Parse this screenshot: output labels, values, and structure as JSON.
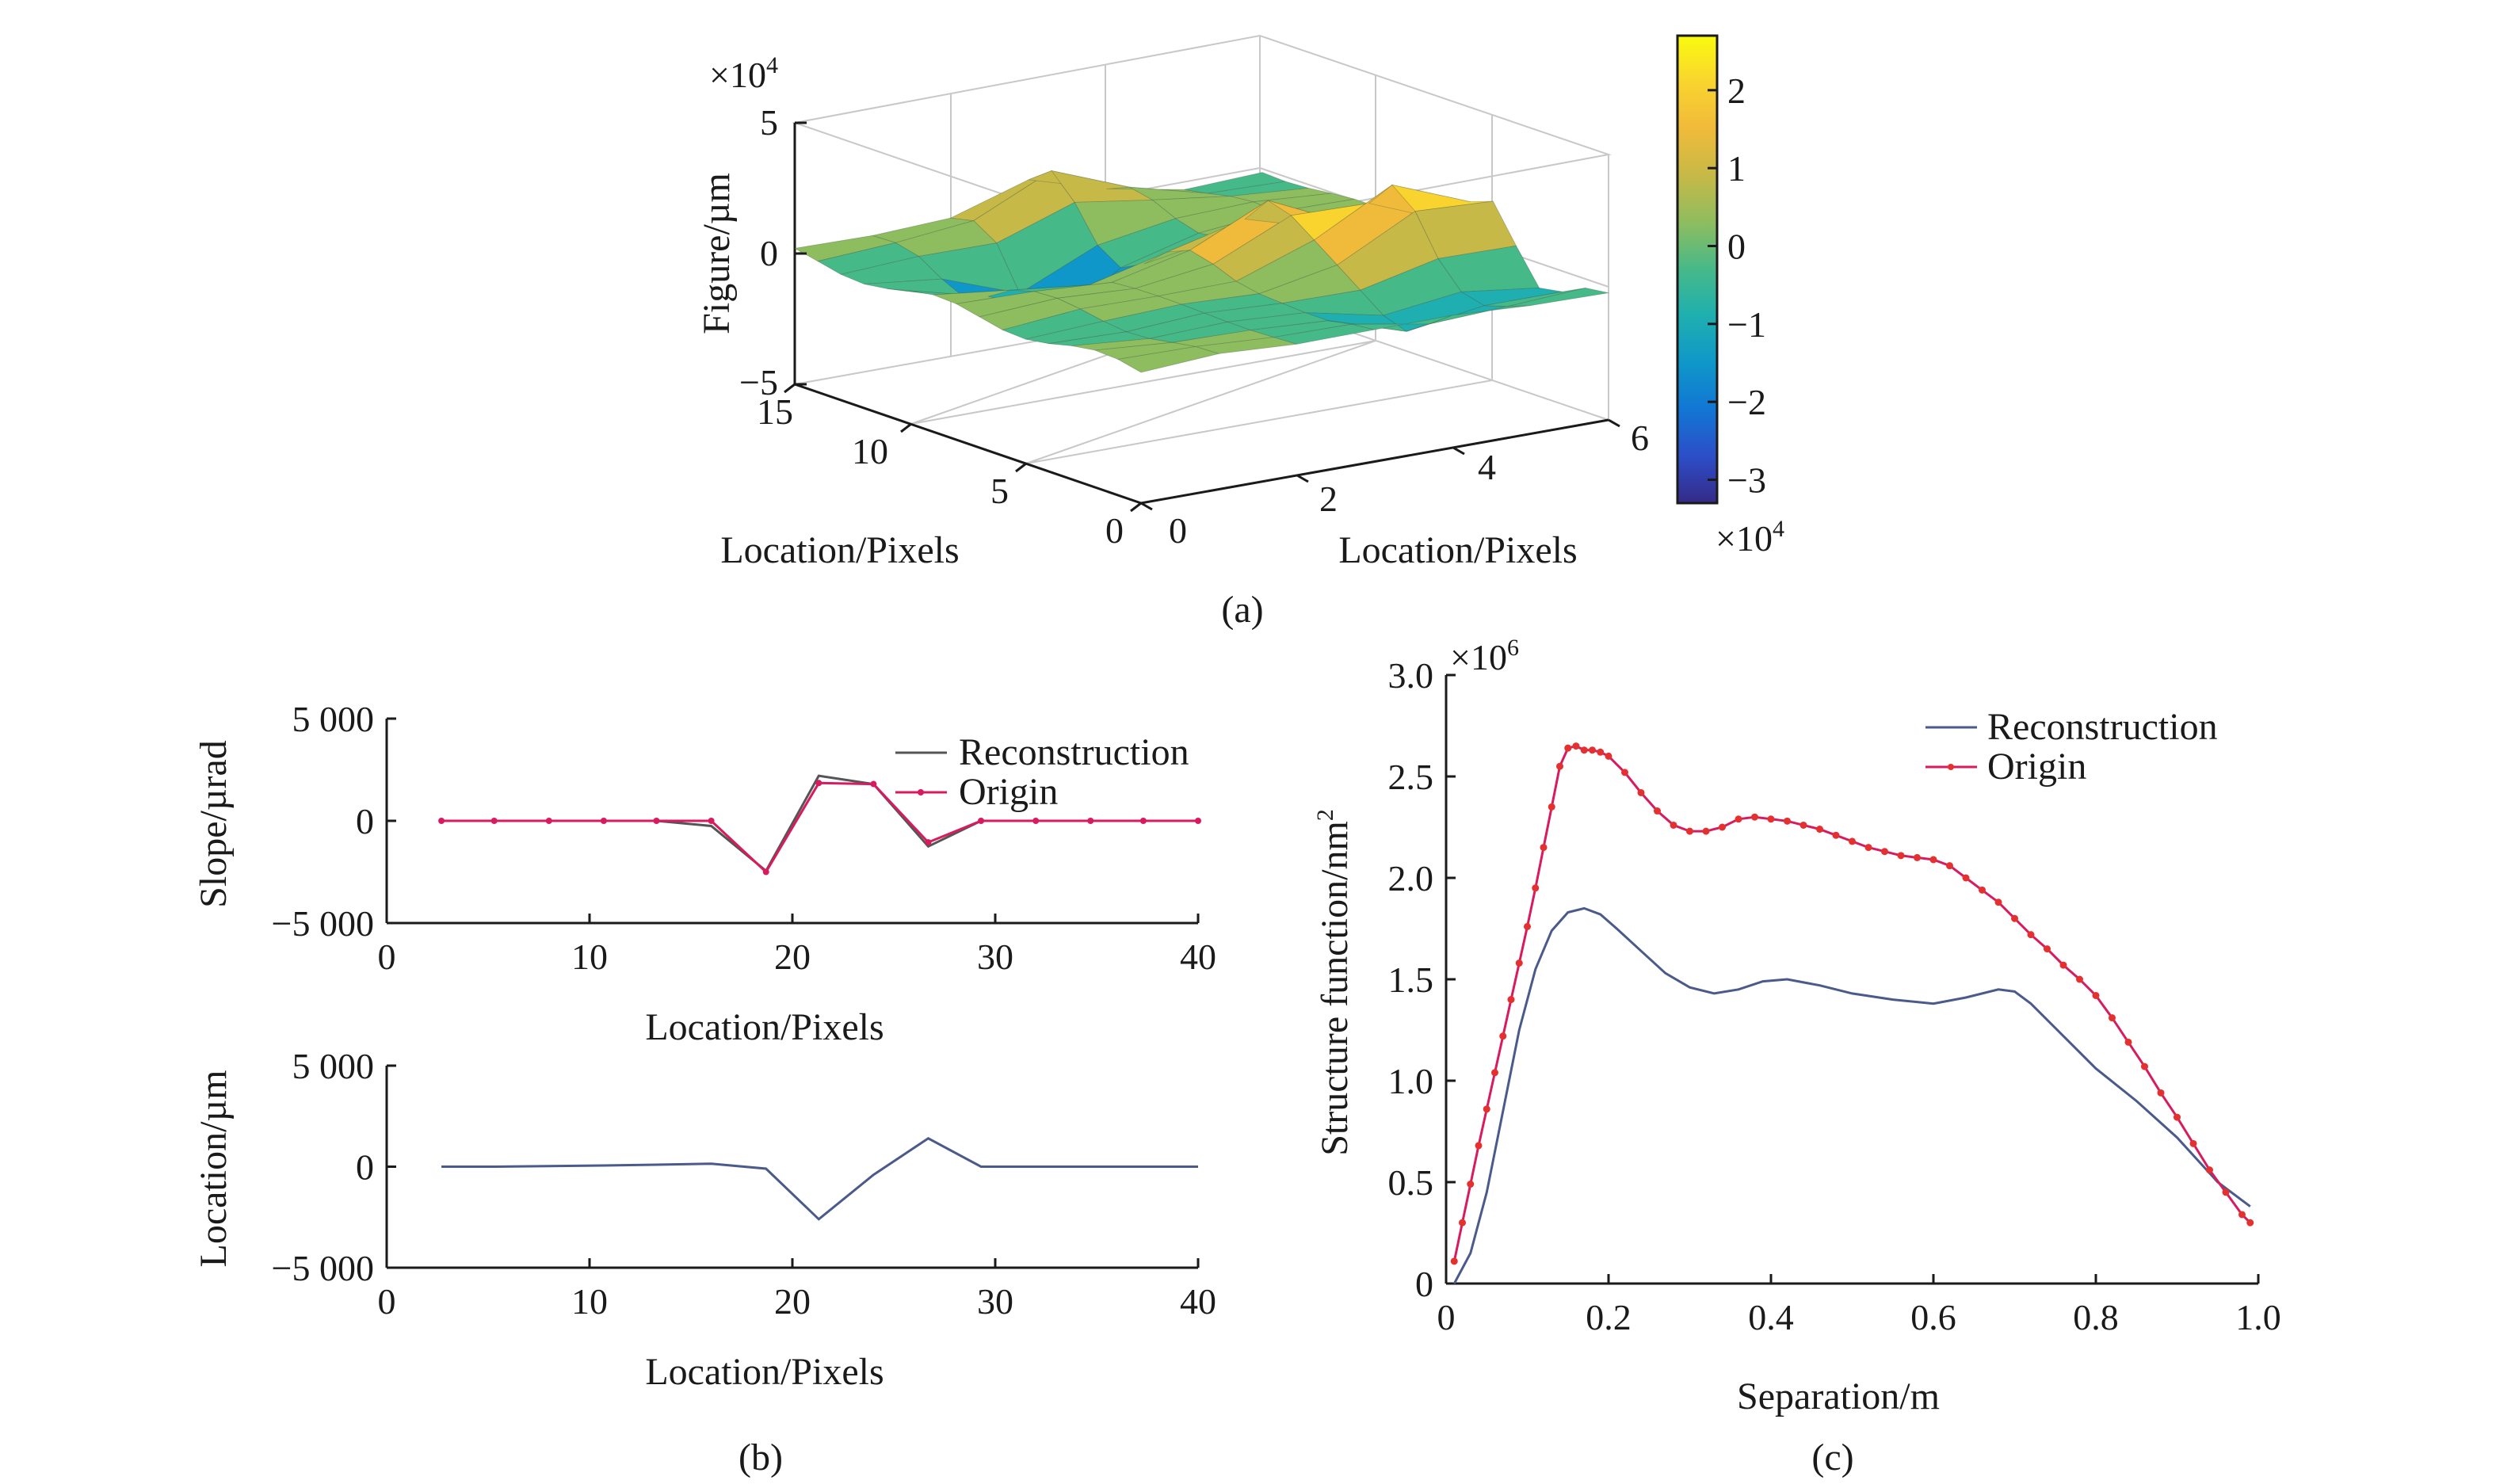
{
  "panels": {
    "a": {
      "label": "(a)",
      "type": "surface3d",
      "zlabel": "Figure/µm",
      "z_exponent": "×10",
      "z_exp_power": "4",
      "zticks": [
        "5",
        "0",
        "−5"
      ],
      "xlabel_left": "Location/Pixels",
      "xticks_left": [
        "15",
        "10",
        "5",
        "0"
      ],
      "xlabel_right": "Location/Pixels",
      "xticks_right": [
        "0",
        "2",
        "4",
        "6"
      ],
      "colorbar": {
        "ticks": [
          "2",
          "1",
          "0",
          "−1",
          "−2",
          "−3"
        ],
        "exponent": "×10",
        "exp_power": "4",
        "range": [
          -3.3,
          2.7
        ],
        "colors": [
          "#352a87",
          "#2c4ec8",
          "#1276d4",
          "#0f97c9",
          "#1fafb0",
          "#46b989",
          "#8ebd5f",
          "#c6b948",
          "#f0ba3a",
          "#f9d42f",
          "#f9fb0e"
        ]
      }
    },
    "b_top": {
      "ylabel": "Slope/µrad",
      "xlabel": "Location/Pixels",
      "yticks": [
        "5 000",
        "0",
        "−5 000"
      ],
      "xticks": [
        "0",
        "10",
        "20",
        "30",
        "40"
      ],
      "legend": [
        "Reconstruction",
        "Origin"
      ]
    },
    "b_bottom": {
      "ylabel": "Location/µm",
      "xlabel": "Location/Pixels",
      "yticks": [
        "5 000",
        "0",
        "−5 000"
      ],
      "xticks": [
        "0",
        "10",
        "20",
        "30",
        "40"
      ]
    },
    "b": {
      "label": "(b)"
    },
    "c": {
      "label": "(c)",
      "ylabel": "Structure function/nm",
      "ylabel_sup": "2",
      "xlabel": "Separation/m",
      "y_exponent": "×10",
      "y_exp_power": "6",
      "yticks": [
        "3.0",
        "2.5",
        "2.0",
        "1.5",
        "1.0",
        "0.5",
        "0"
      ],
      "xticks": [
        "0",
        "0.2",
        "0.4",
        "0.6",
        "0.8",
        "1.0"
      ],
      "legend": [
        "Reconstruction",
        "Origin"
      ]
    }
  },
  "chart_data": [
    {
      "type": "surface",
      "panel": "a",
      "x_range": [
        0,
        6
      ],
      "y_range": [
        0,
        15
      ],
      "z_range": [
        -5,
        5
      ],
      "z_scale": "x1e4",
      "grid_rows": 16,
      "grid_cols": 7,
      "peaks": [
        {
          "x": 3,
          "y": 14,
          "z": 1.8
        },
        {
          "x": 4,
          "y": 8,
          "z": 1.9
        },
        {
          "x": 2,
          "y": 11,
          "z": -2.9
        },
        {
          "x": 5,
          "y": 6,
          "z": 2.2
        },
        {
          "x": 6,
          "y": 5,
          "z": 1.6
        },
        {
          "x": 6,
          "y": 3,
          "z": -1.2
        },
        {
          "x": 4,
          "y": 2,
          "z": -1.0
        }
      ]
    },
    {
      "type": "line",
      "panel": "b_top",
      "x_range": [
        0,
        40
      ],
      "y_range": [
        -5000,
        5000
      ],
      "series": [
        {
          "name": "Reconstruction",
          "color": "#555555",
          "x": [
            2.7,
            5.3,
            8,
            10.7,
            13.3,
            16,
            18.7,
            21.3,
            24,
            26.7,
            29.3,
            32,
            34.7,
            37.3,
            40
          ],
          "y": [
            0,
            0,
            0,
            0,
            0,
            -250,
            -2450,
            2200,
            1800,
            -1250,
            0,
            0,
            0,
            0,
            0
          ]
        },
        {
          "name": "Origin",
          "color": "#d81b5f",
          "x": [
            2.7,
            5.3,
            8,
            10.7,
            13.3,
            16,
            18.7,
            21.3,
            24,
            26.7,
            29.3,
            32,
            34.7,
            37.3,
            40
          ],
          "y": [
            0,
            0,
            0,
            0,
            0,
            0,
            -2500,
            1850,
            1800,
            -1050,
            0,
            0,
            0,
            0,
            0
          ]
        }
      ]
    },
    {
      "type": "line",
      "panel": "b_bottom",
      "x_range": [
        0,
        40
      ],
      "y_range": [
        -5000,
        5000
      ],
      "series": [
        {
          "name": "",
          "color": "#4a5a8a",
          "x": [
            2.7,
            5.3,
            8,
            10.7,
            13.3,
            16,
            18.7,
            21.3,
            24,
            26.7,
            29.3,
            32,
            34.7,
            37.3,
            40
          ],
          "y": [
            0,
            0,
            30,
            60,
            100,
            150,
            -100,
            -2600,
            -400,
            1400,
            0,
            0,
            0,
            0,
            0
          ]
        }
      ]
    },
    {
      "type": "line",
      "panel": "c",
      "x_range": [
        0,
        1.0
      ],
      "y_range": [
        0,
        3.0
      ],
      "y_scale": "x1e6",
      "series": [
        {
          "name": "Reconstruction",
          "color": "#4a5a8a",
          "x": [
            0.01,
            0.03,
            0.05,
            0.07,
            0.09,
            0.11,
            0.13,
            0.15,
            0.17,
            0.19,
            0.21,
            0.24,
            0.27,
            0.3,
            0.33,
            0.36,
            0.39,
            0.42,
            0.46,
            0.5,
            0.55,
            0.6,
            0.64,
            0.68,
            0.7,
            0.72,
            0.75,
            0.8,
            0.85,
            0.9,
            0.95,
            0.99
          ],
          "y": [
            0.0,
            0.15,
            0.45,
            0.85,
            1.25,
            1.55,
            1.74,
            1.83,
            1.85,
            1.82,
            1.75,
            1.64,
            1.53,
            1.46,
            1.43,
            1.45,
            1.49,
            1.5,
            1.47,
            1.43,
            1.4,
            1.38,
            1.41,
            1.45,
            1.44,
            1.38,
            1.26,
            1.06,
            0.9,
            0.72,
            0.5,
            0.38
          ]
        },
        {
          "name": "Origin",
          "color": "#d81b5f",
          "x": [
            0.01,
            0.02,
            0.03,
            0.04,
            0.05,
            0.06,
            0.07,
            0.08,
            0.09,
            0.1,
            0.11,
            0.12,
            0.13,
            0.14,
            0.15,
            0.16,
            0.17,
            0.18,
            0.19,
            0.2,
            0.22,
            0.24,
            0.26,
            0.28,
            0.3,
            0.32,
            0.34,
            0.36,
            0.38,
            0.4,
            0.42,
            0.44,
            0.46,
            0.48,
            0.5,
            0.52,
            0.54,
            0.56,
            0.58,
            0.6,
            0.62,
            0.64,
            0.66,
            0.68,
            0.7,
            0.72,
            0.74,
            0.76,
            0.78,
            0.8,
            0.82,
            0.84,
            0.86,
            0.88,
            0.9,
            0.92,
            0.94,
            0.96,
            0.98,
            0.99
          ],
          "y": [
            0.11,
            0.3,
            0.49,
            0.68,
            0.86,
            1.04,
            1.22,
            1.4,
            1.58,
            1.76,
            1.95,
            2.15,
            2.35,
            2.55,
            2.64,
            2.65,
            2.63,
            2.63,
            2.62,
            2.6,
            2.52,
            2.42,
            2.33,
            2.26,
            2.23,
            2.23,
            2.25,
            2.29,
            2.3,
            2.29,
            2.28,
            2.26,
            2.24,
            2.21,
            2.18,
            2.15,
            2.13,
            2.11,
            2.1,
            2.09,
            2.06,
            2.0,
            1.94,
            1.88,
            1.8,
            1.72,
            1.65,
            1.57,
            1.5,
            1.42,
            1.31,
            1.19,
            1.07,
            0.94,
            0.82,
            0.69,
            0.56,
            0.45,
            0.34,
            0.3
          ]
        }
      ]
    }
  ]
}
